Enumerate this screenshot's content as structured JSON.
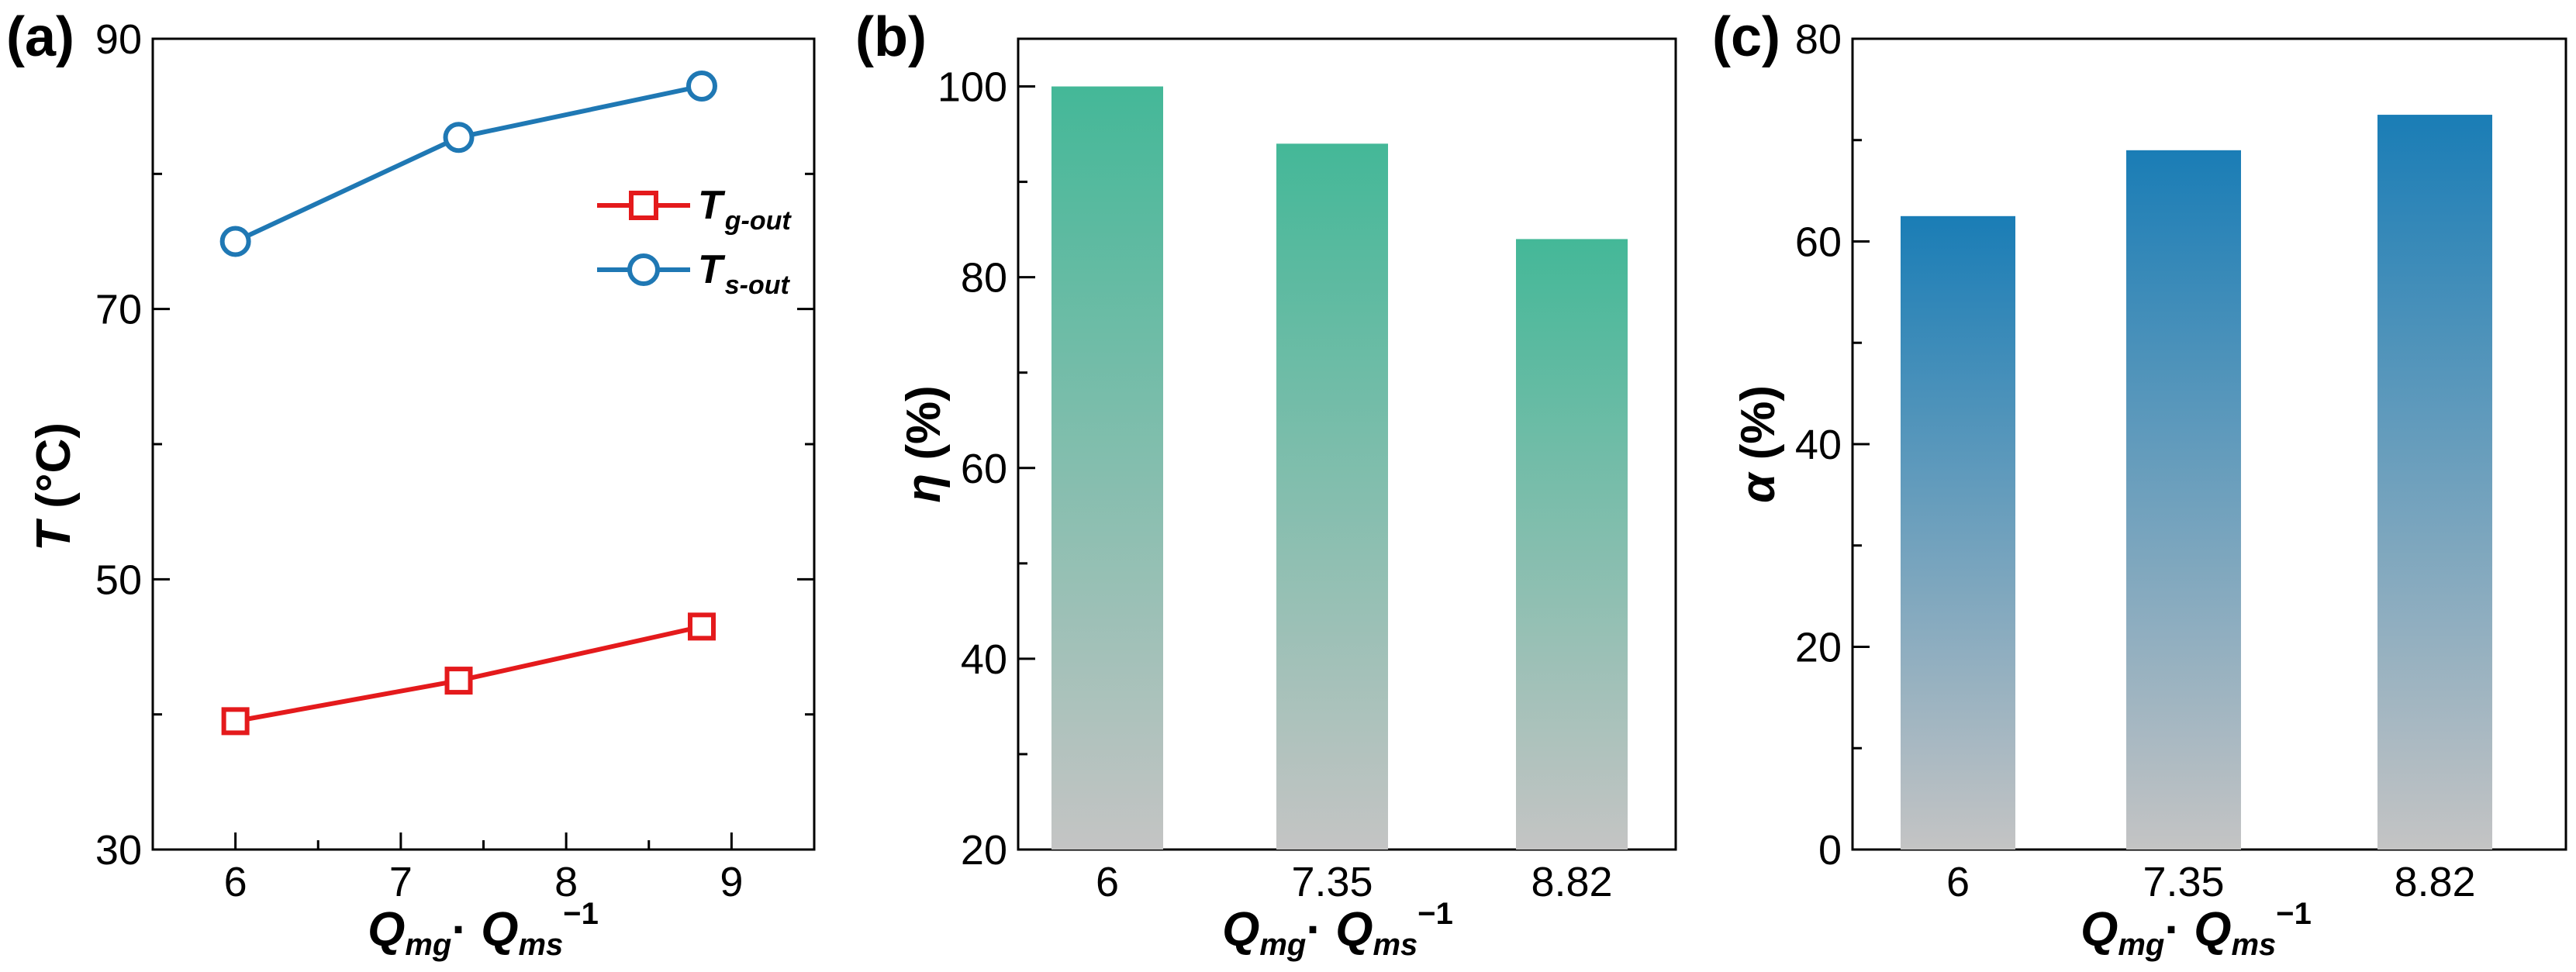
{
  "colors": {
    "red": "#e41a1c",
    "blue": "#1f78b4",
    "green_top": "#44b898",
    "blue_top": "#1a7db6",
    "grey_bottom": "#c4c4c4"
  },
  "chart_data": [
    {
      "panel": "(a)",
      "type": "line",
      "x": [
        6,
        7.35,
        8.82
      ],
      "series": [
        {
          "name": "T_g-out",
          "legend_main": "T",
          "legend_sub": "g-out",
          "values": [
            39.5,
            42.5,
            46.5
          ],
          "marker": "square",
          "color": "#e41a1c"
        },
        {
          "name": "T_s-out",
          "legend_main": "T",
          "legend_sub": "s-out",
          "values": [
            75,
            82.7,
            86.5
          ],
          "marker": "circle",
          "color": "#1f78b4"
        }
      ],
      "xlim": [
        5.5,
        9.5
      ],
      "ylim": [
        30,
        90
      ],
      "xticks": [
        "6",
        "7",
        "8",
        "9"
      ],
      "yticks": [
        "30",
        "50",
        "70",
        "90"
      ],
      "ylabel_main": "T",
      "ylabel_unit": " (°C)",
      "xlabel": {
        "q1": "Q",
        "s1": "mg",
        "dot": "· ",
        "q2": "Q",
        "s2": "ms",
        "exp": "−1"
      }
    },
    {
      "panel": "(b)",
      "type": "bar",
      "categories": [
        "6",
        "7.35",
        "8.82"
      ],
      "values": [
        100,
        94,
        84
      ],
      "ylim": [
        20,
        105
      ],
      "yticks": [
        "20",
        "40",
        "60",
        "80",
        "100"
      ],
      "ylabel_main": "η",
      "ylabel_unit": " (%)",
      "xlabel": {
        "q1": "Q",
        "s1": "mg",
        "dot": "· ",
        "q2": "Q",
        "s2": "ms",
        "exp": "−1"
      }
    },
    {
      "panel": "(c)",
      "type": "bar",
      "categories": [
        "6",
        "7.35",
        "8.82"
      ],
      "values": [
        62.5,
        69,
        72.5
      ],
      "ylim": [
        0,
        80
      ],
      "yticks": [
        "0",
        "20",
        "40",
        "60",
        "80"
      ],
      "ylabel_main": "α",
      "ylabel_unit": " (%)",
      "xlabel": {
        "q1": "Q",
        "s1": "mg",
        "dot": "· ",
        "q2": "Q",
        "s2": "ms",
        "exp": "−1"
      }
    }
  ]
}
